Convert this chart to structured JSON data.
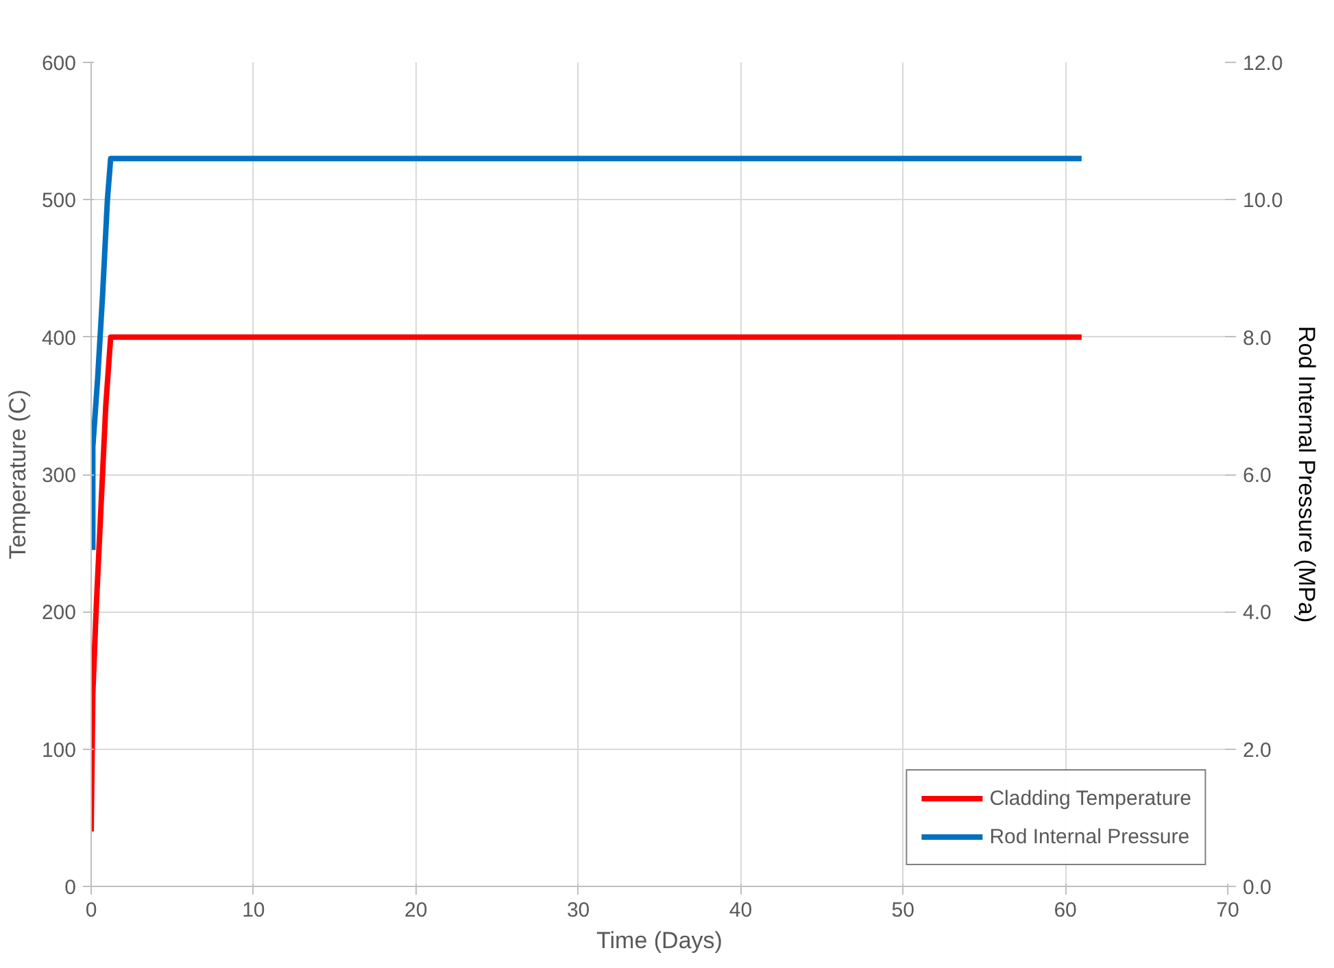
{
  "chart_data": {
    "type": "line",
    "xlabel": "Time (Days)",
    "ylabel": "Temperature (C)",
    "y2label": "Rod Internal Pressure (MPa)",
    "xlim": [
      0,
      70
    ],
    "xticks": [
      0,
      10,
      20,
      30,
      40,
      50,
      60,
      70
    ],
    "ylim": [
      0,
      600
    ],
    "yticks": [
      0,
      100,
      200,
      300,
      400,
      500,
      600
    ],
    "y2lim": [
      0,
      12
    ],
    "y2ticks": [
      {
        "value": 0,
        "label": "0.0"
      },
      {
        "value": 2,
        "label": "2.0"
      },
      {
        "value": 4,
        "label": "4.0"
      },
      {
        "value": 6,
        "label": "6.0"
      },
      {
        "value": 8,
        "label": "8.0"
      },
      {
        "value": 10,
        "label": "10.0"
      },
      {
        "value": 12,
        "label": "12.0"
      }
    ],
    "grid": true,
    "legend": "bottom right",
    "line_style": "solid",
    "marker": "none",
    "series": [
      {
        "name": "Cladding Temperature",
        "color": "#ff0000",
        "x": [
          0,
          0.1,
          0.3,
          0.5,
          0.7,
          0.9,
          1.2,
          61
        ],
        "values": [
          40,
          140,
          200,
          250,
          300,
          350,
          400,
          400
        ]
      },
      {
        "name": "Rod Internal Pressure",
        "color": "#0070c0",
        "axis": "y2",
        "x": [
          0.1,
          0.1,
          0.4,
          0.7,
          1.0,
          1.2,
          61
        ],
        "values": [
          4.9,
          6.4,
          7.4,
          8.6,
          10.0,
          10.6,
          10.6
        ]
      }
    ]
  }
}
